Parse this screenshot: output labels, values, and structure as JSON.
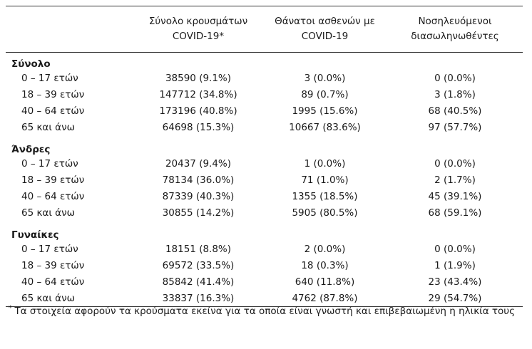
{
  "header": {
    "col1": [
      "Σύνολο κρουσμάτων",
      "COVID-19*"
    ],
    "col2": [
      "Θάνατοι ασθενών με",
      "COVID-19"
    ],
    "col3": [
      "Νοσηλευόμενοι",
      "διασωληνωθέντες"
    ]
  },
  "groups": [
    {
      "title": "Σύνολο",
      "rows": [
        {
          "age": "0 – 17 ετών",
          "cases": "38590 (9.1%)",
          "deaths": "3 (0.0%)",
          "intubated": "0 (0.0%)"
        },
        {
          "age": "18 – 39 ετών",
          "cases": "147712 (34.8%)",
          "deaths": "89 (0.7%)",
          "intubated": "3 (1.8%)"
        },
        {
          "age": "40 – 64 ετών",
          "cases": "173196 (40.8%)",
          "deaths": "1995 (15.6%)",
          "intubated": "68 (40.5%)"
        },
        {
          "age": "65 και άνω",
          "cases": "64698 (15.3%)",
          "deaths": "10667 (83.6%)",
          "intubated": "97 (57.7%)"
        }
      ]
    },
    {
      "title": "Άνδρες",
      "rows": [
        {
          "age": "0 – 17 ετών",
          "cases": "20437 (9.4%)",
          "deaths": "1 (0.0%)",
          "intubated": "0 (0.0%)"
        },
        {
          "age": "18 – 39 ετών",
          "cases": "78134 (36.0%)",
          "deaths": "71 (1.0%)",
          "intubated": "2 (1.7%)"
        },
        {
          "age": "40 – 64 ετών",
          "cases": "87339 (40.3%)",
          "deaths": "1355 (18.5%)",
          "intubated": "45 (39.1%)"
        },
        {
          "age": "65 και άνω",
          "cases": "30855 (14.2%)",
          "deaths": "5905 (80.5%)",
          "intubated": "68 (59.1%)"
        }
      ]
    },
    {
      "title": "Γυναίκες",
      "rows": [
        {
          "age": "0 – 17 ετών",
          "cases": "18151 (8.8%)",
          "deaths": "2 (0.0%)",
          "intubated": "0 (0.0%)"
        },
        {
          "age": "18 – 39 ετών",
          "cases": "69572 (33.5%)",
          "deaths": "18 (0.3%)",
          "intubated": "1 (1.9%)"
        },
        {
          "age": "40 – 64 ετών",
          "cases": "85842 (41.4%)",
          "deaths": "640 (11.8%)",
          "intubated": "23 (43.4%)"
        },
        {
          "age": "65 και άνω",
          "cases": "33837 (16.3%)",
          "deaths": "4762 (87.8%)",
          "intubated": "29 (54.7%)"
        }
      ]
    }
  ],
  "footnote": {
    "marker": "*",
    "text": "Τα στοιχεία αφορούν τα κρούσματα εκείνα για τα οποία είναι γνωστή και επιβεβαιωμένη η ηλικία τους"
  }
}
